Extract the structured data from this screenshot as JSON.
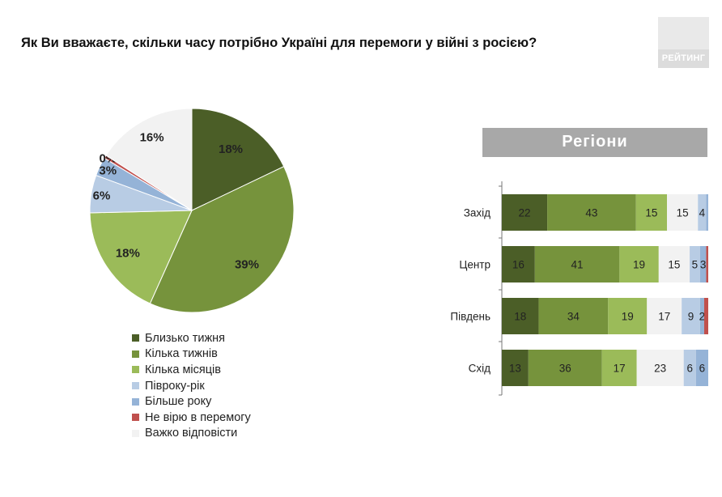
{
  "title": "Як Ви вважаєте, скільки часу потрібно Україні для перемоги у війні з росією?",
  "logo": {
    "text": "РЕЙТИНГ"
  },
  "colors": {
    "series": [
      "#4b5e27",
      "#76933c",
      "#9bbb59",
      "#b8cce4",
      "#95b3d7",
      "#c0504d",
      "#f2f2f2"
    ]
  },
  "chart_data": [
    {
      "type": "pie",
      "title": "",
      "slices": [
        {
          "label": "Близько тижня",
          "value": 18,
          "display": "18%"
        },
        {
          "label": "Кілька тижнів",
          "value": 39,
          "display": "39%"
        },
        {
          "label": "Кілька місяців",
          "value": 18,
          "display": "18%"
        },
        {
          "label": "Півроку-рік",
          "value": 6,
          "display": "6%"
        },
        {
          "label": "Більше року",
          "value": 3,
          "display": "3%"
        },
        {
          "label": "Не вірю в перемогу",
          "value": 0.5,
          "display": "0%"
        },
        {
          "label": "Важко відповісти",
          "value": 16,
          "display": "16%"
        }
      ],
      "legend": [
        "Близько тижня",
        "Кілька тижнів",
        "Кілька місяців",
        "Півроку-рік",
        "Більше року",
        "Не вірю в перемогу",
        "Важко відповісти"
      ],
      "legend_position": "bottom"
    },
    {
      "type": "bar",
      "orientation": "horizontal",
      "stacked": true,
      "title": "Регіони",
      "categories": [
        "Захід",
        "Центр",
        "Південь",
        "Схід"
      ],
      "series": [
        {
          "name": "Близько тижня",
          "values": [
            22,
            16,
            18,
            13
          ],
          "labels": [
            "22",
            "16",
            "18",
            "13"
          ]
        },
        {
          "name": "Кілька тижнів",
          "values": [
            43,
            41,
            34,
            36
          ],
          "labels": [
            "43",
            "41",
            "34",
            "36"
          ]
        },
        {
          "name": "Кілька місяців",
          "values": [
            15,
            19,
            19,
            17
          ],
          "labels": [
            "15",
            "19",
            "19",
            "17"
          ]
        },
        {
          "name": "Важко відповісти",
          "values": [
            15,
            15,
            17,
            23
          ],
          "labels": [
            "15",
            "15",
            "17",
            "23"
          ]
        },
        {
          "name": "Півроку-рік",
          "values": [
            4,
            5,
            9,
            6
          ],
          "labels": [
            "4",
            "5",
            "9",
            "6"
          ]
        },
        {
          "name": "Більше року",
          "values": [
            1,
            3,
            2,
            6
          ],
          "labels": [
            "",
            "3",
            "2",
            "6"
          ]
        },
        {
          "name": "Не вірю в перемогу",
          "values": [
            0,
            1,
            2,
            0
          ],
          "labels": [
            "",
            "",
            "",
            ""
          ]
        }
      ],
      "xlim": [
        0,
        100
      ]
    }
  ]
}
